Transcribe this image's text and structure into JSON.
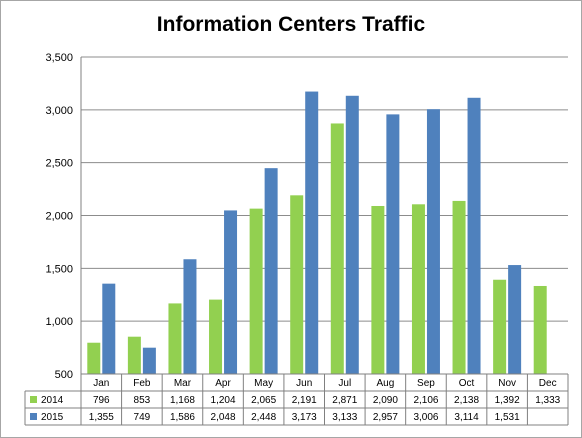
{
  "chart_data": {
    "type": "bar",
    "title": "Information Centers Traffic",
    "categories": [
      "Jan",
      "Feb",
      "Mar",
      "Apr",
      "May",
      "Jun",
      "Jul",
      "Aug",
      "Sep",
      "Oct",
      "Nov",
      "Dec"
    ],
    "series": [
      {
        "name": "2014",
        "color": "#92d050",
        "values": [
          796,
          853,
          1168,
          1204,
          2065,
          2191,
          2871,
          2090,
          2106,
          2138,
          1392,
          1333
        ],
        "labels": [
          "796",
          "853",
          "1,168",
          "1,204",
          "2,065",
          "2,191",
          "2,871",
          "2,090",
          "2,106",
          "2,138",
          "1,392",
          "1,333"
        ]
      },
      {
        "name": "2015",
        "color": "#4f81bd",
        "values": [
          1355,
          749,
          1586,
          2048,
          2448,
          3173,
          3133,
          2957,
          3006,
          3114,
          1531,
          null
        ],
        "labels": [
          "1,355",
          "749",
          "1,586",
          "2,048",
          "2,448",
          "3,173",
          "3,133",
          "2,957",
          "3,006",
          "3,114",
          "1,531",
          ""
        ]
      }
    ],
    "ylim": [
      500,
      3500
    ],
    "yticks": [
      "500",
      "1,000",
      "1,500",
      "2,000",
      "2,500",
      "3,000",
      "3,500"
    ],
    "ytick_values": [
      500,
      1000,
      1500,
      2000,
      2500,
      3000,
      3500
    ],
    "grid": true,
    "legend": "data-table"
  }
}
